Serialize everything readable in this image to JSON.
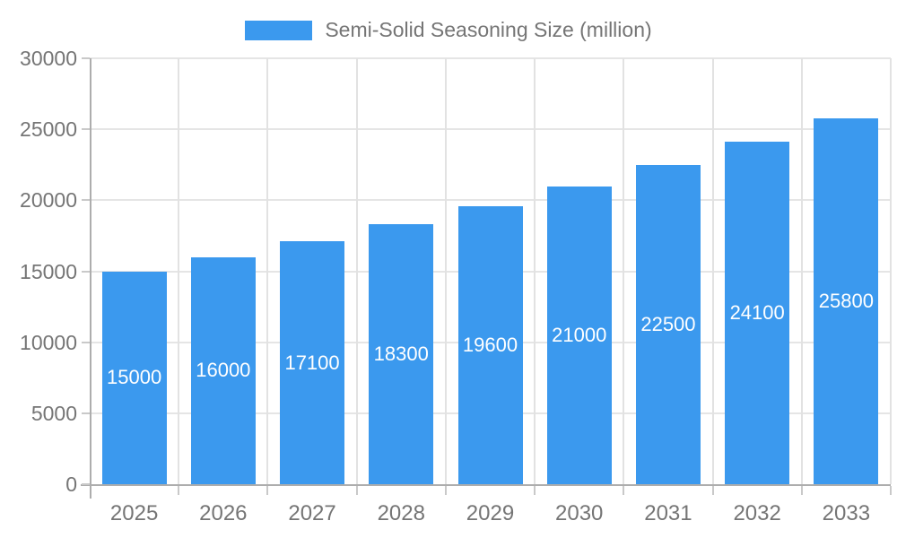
{
  "chart_data": {
    "type": "bar",
    "title": "",
    "categories": [
      "2025",
      "2026",
      "2027",
      "2028",
      "2029",
      "2030",
      "2031",
      "2032",
      "2033"
    ],
    "series": [
      {
        "name": "Semi-Solid Seasoning Size (million)",
        "values": [
          15000,
          16000,
          17100,
          18300,
          19600,
          21000,
          22500,
          24100,
          25800
        ]
      }
    ],
    "xlabel": "",
    "ylabel": "",
    "ylim": [
      0,
      30000
    ],
    "yticks": [
      0,
      5000,
      10000,
      15000,
      20000,
      25000,
      30000
    ],
    "grid": true,
    "legend_position": "top-center",
    "value_labels_shown": true,
    "colors": {
      "bar": "#3B99EE",
      "value_label": "#FFFFFF",
      "axis_text": "#757575",
      "gridline": "#E5E5E5",
      "axis_line": "#ADADAD"
    }
  }
}
